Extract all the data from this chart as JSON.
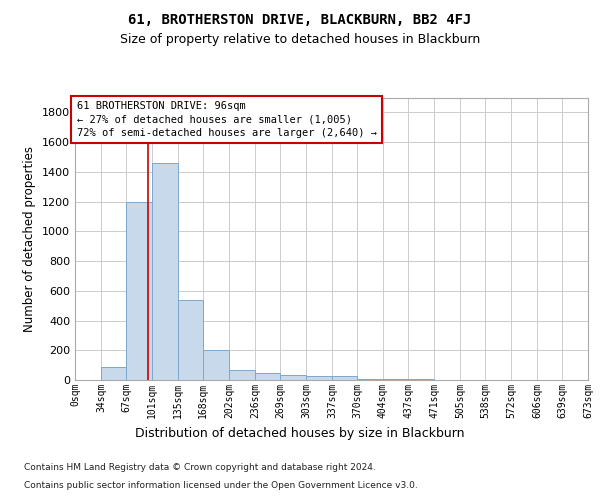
{
  "title": "61, BROTHERSTON DRIVE, BLACKBURN, BB2 4FJ",
  "subtitle": "Size of property relative to detached houses in Blackburn",
  "xlabel": "Distribution of detached houses by size in Blackburn",
  "ylabel": "Number of detached properties",
  "footer_line1": "Contains HM Land Registry data © Crown copyright and database right 2024.",
  "footer_line2": "Contains public sector information licensed under the Open Government Licence v3.0.",
  "bin_edges": [
    0,
    34,
    67,
    101,
    135,
    168,
    202,
    236,
    269,
    303,
    337,
    370,
    404,
    437,
    471,
    505,
    538,
    572,
    606,
    639,
    673
  ],
  "bar_heights": [
    0,
    90,
    1200,
    1460,
    540,
    205,
    65,
    45,
    35,
    28,
    28,
    10,
    10,
    5,
    0,
    0,
    0,
    0,
    0,
    0
  ],
  "bar_color": "#c9d9ec",
  "bar_edge_color": "#7aa8cc",
  "grid_color": "#cccccc",
  "property_size": 96,
  "red_line_color": "#cc0000",
  "annotation_line1": "61 BROTHERSTON DRIVE: 96sqm",
  "annotation_line2": "← 27% of detached houses are smaller (1,005)",
  "annotation_line3": "72% of semi-detached houses are larger (2,640) →",
  "annotation_box_color": "#ffffff",
  "annotation_box_edge": "#cc0000",
  "ylim": [
    0,
    1900
  ],
  "yticks": [
    0,
    200,
    400,
    600,
    800,
    1000,
    1200,
    1400,
    1600,
    1800
  ],
  "background_color": "#ffffff",
  "tick_labels": [
    "0sqm",
    "34sqm",
    "67sqm",
    "101sqm",
    "135sqm",
    "168sqm",
    "202sqm",
    "236sqm",
    "269sqm",
    "303sqm",
    "337sqm",
    "370sqm",
    "404sqm",
    "437sqm",
    "471sqm",
    "505sqm",
    "538sqm",
    "572sqm",
    "606sqm",
    "639sqm",
    "673sqm"
  ]
}
